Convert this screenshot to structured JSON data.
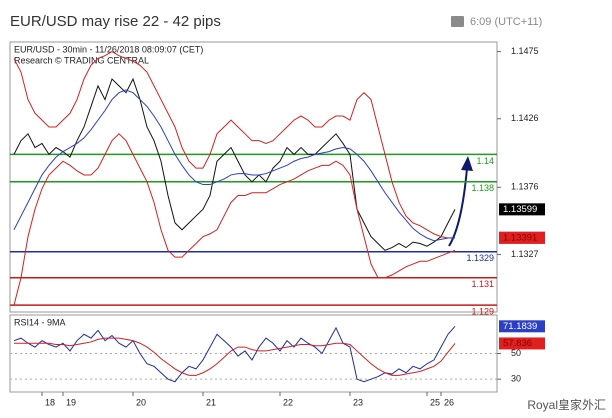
{
  "header": {
    "title": "EUR/USD may rise 22 - 42 pips",
    "time": "6:09 (UTC+11)"
  },
  "watermark": "Royal皇家外汇",
  "chart_data": [
    {
      "type": "line",
      "title": "EUR/USD - 30min - 11/26/2018 08:09:07 (CET)",
      "subtitle": "Research © TRADING CENTRAL",
      "categories": [
        null,
        null,
        null,
        null,
        "18",
        null,
        null,
        "19",
        null,
        null,
        null,
        null,
        null,
        null,
        null,
        null,
        null,
        "20",
        null,
        null,
        null,
        null,
        null,
        null,
        null,
        null,
        null,
        "21",
        null,
        null,
        null,
        null,
        null,
        null,
        null,
        null,
        null,
        null,
        "22",
        null,
        null,
        null,
        null,
        null,
        null,
        null,
        null,
        null,
        "23",
        null,
        null,
        null,
        null,
        null,
        null,
        null,
        null,
        null,
        null,
        "25",
        null,
        "26",
        null,
        null
      ],
      "series": [
        {
          "color": "#111111",
          "values": [
            1.14,
            1.141,
            1.1415,
            1.1405,
            1.1408,
            1.14,
            1.1405,
            1.1402,
            1.1398,
            1.141,
            1.142,
            1.1435,
            1.145,
            1.144,
            1.1455,
            1.145,
            1.1445,
            1.1455,
            1.144,
            1.142,
            1.141,
            1.1395,
            1.137,
            1.135,
            1.1345,
            1.135,
            1.1355,
            1.136,
            1.137,
            1.1395,
            1.14,
            1.1405,
            1.1395,
            1.1385,
            1.138,
            1.1385,
            1.138,
            1.139,
            1.1395,
            1.1405,
            1.14,
            1.1405,
            1.14,
            1.14,
            1.1405,
            1.141,
            1.1415,
            1.1408,
            1.14,
            1.136,
            1.135,
            1.134,
            1.1335,
            1.133,
            1.1332,
            1.1335,
            1.1332,
            1.1336,
            1.1335,
            1.1333,
            1.1336,
            1.134,
            1.135,
            1.13599
          ]
        },
        {
          "color": "#d42020",
          "values": [
            1.147,
            1.146,
            1.144,
            1.143,
            1.1425,
            1.142,
            1.142,
            1.1425,
            1.143,
            1.144,
            1.1455,
            1.1465,
            1.147,
            1.1472,
            1.1475,
            1.1472,
            1.147,
            1.1468,
            1.1465,
            1.146,
            1.145,
            1.144,
            1.143,
            1.142,
            1.1405,
            1.1395,
            1.139,
            1.139,
            1.14,
            1.1415,
            1.142,
            1.1425,
            1.142,
            1.1415,
            1.141,
            1.141,
            1.1408,
            1.141,
            1.1415,
            1.142,
            1.1425,
            1.1428,
            1.1425,
            1.142,
            1.142,
            1.1425,
            1.1428,
            1.1428,
            1.1425,
            1.144,
            1.1445,
            1.144,
            1.142,
            1.14,
            1.138,
            1.1365,
            1.1355,
            1.135,
            1.1348,
            1.1345,
            1.1342,
            1.134,
            1.1339,
            1.13391
          ]
        },
        {
          "color": "#d42020",
          "values": [
            1.129,
            1.131,
            1.134,
            1.136,
            1.1375,
            1.1385,
            1.139,
            1.1395,
            1.1392,
            1.1388,
            1.1385,
            1.1385,
            1.139,
            1.14,
            1.141,
            1.1415,
            1.141,
            1.14,
            1.139,
            1.138,
            1.1365,
            1.1345,
            1.133,
            1.1325,
            1.1325,
            1.133,
            1.1335,
            1.134,
            1.1342,
            1.1345,
            1.1355,
            1.1365,
            1.137,
            1.137,
            1.1372,
            1.1372,
            1.1372,
            1.1375,
            1.1378,
            1.138,
            1.1382,
            1.1385,
            1.1388,
            1.139,
            1.1392,
            1.1392,
            1.1395,
            1.1392,
            1.1385,
            1.136,
            1.134,
            1.132,
            1.131,
            1.131,
            1.1312,
            1.1315,
            1.1318,
            1.132,
            1.1322,
            1.1322,
            1.1324,
            1.1326,
            1.1328,
            1.133
          ]
        },
        {
          "color": "#2b3fc4",
          "values": [
            1.1345,
            1.1355,
            1.1365,
            1.1375,
            1.1385,
            1.1392,
            1.1398,
            1.1402,
            1.1405,
            1.1408,
            1.1412,
            1.1418,
            1.1425,
            1.1432,
            1.144,
            1.1445,
            1.1447,
            1.1445,
            1.144,
            1.1435,
            1.1428,
            1.142,
            1.141,
            1.14,
            1.1392,
            1.1385,
            1.138,
            1.1378,
            1.1378,
            1.138,
            1.1382,
            1.1385,
            1.1386,
            1.1386,
            1.1385,
            1.1385,
            1.1386,
            1.1388,
            1.139,
            1.1392,
            1.1395,
            1.1397,
            1.1398,
            1.14,
            1.1401,
            1.1402,
            1.1404,
            1.1405,
            1.1404,
            1.14,
            1.1395,
            1.1388,
            1.138,
            1.1372,
            1.1365,
            1.1358,
            1.1352,
            1.1346,
            1.1342,
            1.1339,
            1.1337,
            1.1338,
            1.1339,
            1.13392
          ]
        }
      ],
      "last_value_boxes": [
        {
          "series": 0,
          "color": "#000000",
          "text_color": "#ffffff"
        },
        {
          "series": 3,
          "color": "#2b3fc4",
          "text_color": "#ffffff"
        },
        {
          "series": 1,
          "color": "#e02020",
          "text_color": "#8a0000"
        }
      ],
      "levels": [
        {
          "value": 1.14,
          "color": "#1e9a1e"
        },
        {
          "value": 1.138,
          "color": "#1e9a1e"
        },
        {
          "value": 1.1329,
          "color": "#1c2f9c"
        },
        {
          "value": 1.131,
          "color": "#c81818"
        },
        {
          "value": 1.129,
          "color": "#c81818"
        }
      ],
      "ylim": [
        1.1285,
        1.1482
      ],
      "yticks": [
        1.1475,
        1.1426,
        1.1376,
        1.1327
      ]
    },
    {
      "type": "line",
      "title": "RSI14 - 9MA",
      "series": [
        {
          "color": "#1c2fa8",
          "values": [
            60,
            62,
            58,
            55,
            60,
            57,
            55,
            58,
            52,
            60,
            65,
            62,
            68,
            60,
            64,
            58,
            55,
            60,
            50,
            42,
            40,
            35,
            30,
            28,
            35,
            40,
            38,
            45,
            55,
            65,
            60,
            55,
            48,
            52,
            45,
            55,
            62,
            58,
            52,
            60,
            55,
            62,
            58,
            55,
            50,
            60,
            70,
            58,
            55,
            30,
            28,
            30,
            32,
            35,
            34,
            38,
            35,
            40,
            38,
            42,
            45,
            55,
            65,
            71.1839
          ]
        },
        {
          "color": "#d42020",
          "values": [
            58,
            58,
            58,
            58,
            58,
            58,
            57,
            57,
            56,
            57,
            58,
            59,
            61,
            62,
            62,
            62,
            61,
            60,
            58,
            55,
            51,
            46,
            42,
            38,
            35,
            33,
            33,
            35,
            38,
            42,
            47,
            52,
            55,
            55,
            53,
            52,
            52,
            53,
            54,
            55,
            56,
            57,
            57,
            56,
            56,
            57,
            58,
            58,
            57,
            52,
            47,
            42,
            38,
            35,
            33,
            33,
            34,
            35,
            36,
            38,
            40,
            44,
            51,
            57.836
          ]
        }
      ],
      "last_value_boxes": [
        {
          "series": 0,
          "color": "#2b3fc4",
          "text_color": "#ffffff"
        },
        {
          "series": 1,
          "color": "#e02020",
          "text_color": "#8a0000"
        }
      ],
      "ylim": [
        20,
        80
      ],
      "yticks": [
        30,
        50
      ]
    }
  ]
}
